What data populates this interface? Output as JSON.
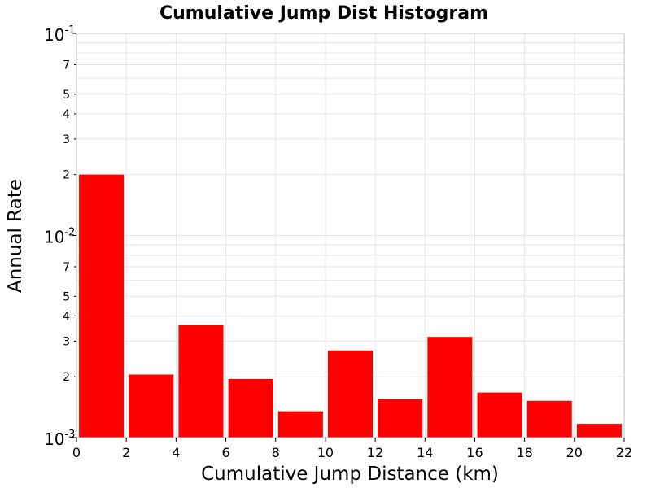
{
  "chart_data": {
    "type": "bar",
    "title": "Cumulative Jump Dist Histogram",
    "xlabel": "Cumulative Jump Distance (km)",
    "ylabel": "Annual Rate",
    "xlim": [
      0,
      22
    ],
    "ylim": [
      0.001,
      0.1
    ],
    "yscale": "log",
    "grid": true,
    "bar_color": "#ff0000",
    "bar_width_km": 1.8,
    "x": [
      1,
      3,
      5,
      7,
      9,
      11,
      13,
      15,
      17,
      19,
      21
    ],
    "values": [
      0.02,
      0.00205,
      0.0036,
      0.00195,
      0.00135,
      0.0027,
      0.00155,
      0.00315,
      0.00167,
      0.00152,
      0.00117
    ],
    "x_ticks": [
      "0",
      "2",
      "4",
      "6",
      "8",
      "10",
      "12",
      "14",
      "16",
      "18",
      "20",
      "22"
    ],
    "y_decade_ticks": [
      {
        "value": 0.1,
        "base": "10",
        "exp": "-1"
      },
      {
        "value": 0.01,
        "base": "10",
        "exp": "-2"
      },
      {
        "value": 0.001,
        "base": "10",
        "exp": "-3"
      }
    ],
    "y_minor_tick_labels": [
      {
        "value": 0.07,
        "label": "7"
      },
      {
        "value": 0.05,
        "label": "5"
      },
      {
        "value": 0.04,
        "label": "4"
      },
      {
        "value": 0.03,
        "label": "3"
      },
      {
        "value": 0.02,
        "label": "2"
      },
      {
        "value": 0.007,
        "label": "7"
      },
      {
        "value": 0.005,
        "label": "5"
      },
      {
        "value": 0.004,
        "label": "4"
      },
      {
        "value": 0.003,
        "label": "3"
      },
      {
        "value": 0.002,
        "label": "2"
      }
    ]
  }
}
